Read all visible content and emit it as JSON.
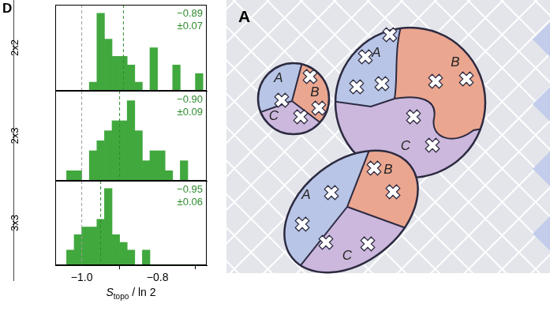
{
  "figure_label": "D",
  "chart_data": [
    {
      "type": "histogram",
      "row_label": "2x2",
      "bins": [
        -1.06,
        -1.04,
        -1.02,
        -1.0,
        -0.98,
        -0.96,
        -0.94,
        -0.92,
        -0.9,
        -0.88,
        -0.86,
        -0.84,
        -0.82,
        -0.8,
        -0.78,
        -0.76,
        -0.74,
        -0.72,
        -0.7,
        -0.68
      ],
      "values": [
        0,
        0,
        0,
        0,
        1,
        9,
        6,
        4,
        4,
        3,
        1,
        0,
        5,
        0,
        0,
        3,
        0,
        0,
        2
      ],
      "color": "#41a83e",
      "xlim": [
        -1.07,
        -0.67
      ],
      "ylim": [
        0,
        10
      ],
      "xticks": [
        {
          "value": -1,
          "label": "−1.0"
        },
        {
          "value": -0.8,
          "label": "−0.8"
        }
      ],
      "grid": false,
      "tick_labels": false,
      "reference_line": -1,
      "mean": {
        "value": -0.89,
        "label": "−0.89"
      },
      "error": {
        "value": 0.07,
        "label": "±0.07"
      }
    },
    {
      "type": "histogram",
      "row_label": "2x3",
      "bins": [
        -1.06,
        -1.04,
        -1.02,
        -1.0,
        -0.98,
        -0.96,
        -0.94,
        -0.92,
        -0.9,
        -0.88,
        -0.86,
        -0.84,
        -0.82,
        -0.8,
        -0.78,
        -0.76,
        -0.74,
        -0.72,
        -0.7,
        -0.68
      ],
      "values": [
        0,
        1,
        1,
        0,
        3,
        4,
        5,
        6,
        6,
        8,
        5,
        2,
        3,
        3,
        1,
        0,
        2,
        0,
        0
      ],
      "color": "#41a83e",
      "xlim": [
        -1.07,
        -0.67
      ],
      "ylim": [
        0,
        9
      ],
      "xticks": [
        {
          "value": -1,
          "label": "−1.0"
        },
        {
          "value": -0.8,
          "label": "−0.8"
        }
      ],
      "grid": false,
      "tick_labels": false,
      "reference_line": -1,
      "mean": {
        "value": -0.9,
        "label": "−0.90"
      },
      "error": {
        "value": 0.09,
        "label": "±0.09"
      }
    },
    {
      "type": "histogram",
      "row_label": "3x3",
      "bins": [
        -1.06,
        -1.04,
        -1.02,
        -1.0,
        -0.98,
        -0.96,
        -0.94,
        -0.92,
        -0.9,
        -0.88,
        -0.86,
        -0.84,
        -0.82,
        -0.8,
        -0.78,
        -0.76,
        -0.74,
        -0.72,
        -0.7,
        -0.68
      ],
      "values": [
        0,
        2,
        4,
        5,
        5,
        6,
        10,
        4,
        3,
        2,
        0,
        2,
        0,
        0,
        0,
        0,
        0,
        0,
        0
      ],
      "color": "#41a83e",
      "xlim": [
        -1.07,
        -0.67
      ],
      "ylim": [
        0,
        11
      ],
      "xticks": [
        {
          "value": -1,
          "label": "−1.0"
        },
        {
          "value": -0.8,
          "label": "−0.8"
        }
      ],
      "grid": false,
      "tick_labels": "x",
      "reference_line": -1,
      "mean": {
        "value": -0.95,
        "label": "−0.95"
      },
      "error": {
        "value": 0.06,
        "label": "±0.06"
      },
      "xlabel": {
        "text": "S",
        "subscript": "topo",
        "suffix": " / ln 2"
      }
    }
  ],
  "diagram": {
    "figure_label": "A",
    "shapes": [
      {
        "regions": [
          "A",
          "B",
          "C"
        ]
      },
      {
        "regions": [
          "A",
          "B",
          "C"
        ]
      },
      {
        "regions": [
          "A",
          "B",
          "C"
        ]
      }
    ]
  }
}
